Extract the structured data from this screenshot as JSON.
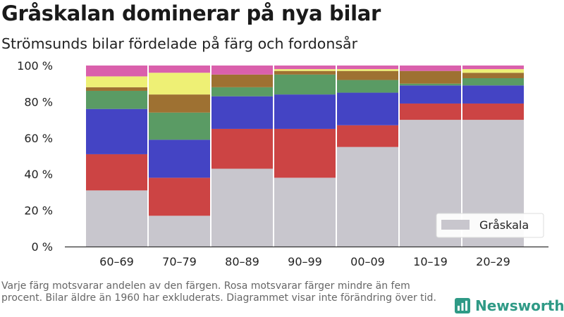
{
  "header": {
    "title": "Gråskalan dominerar på nya bilar",
    "subtitle": "Strömsunds bilar fördelade på färg och fordonsår"
  },
  "chart_data": {
    "type": "bar",
    "stacked": true,
    "categories": [
      "60–69",
      "70–79",
      "80–89",
      "90–99",
      "00–09",
      "10–19",
      "20–29"
    ],
    "y_ticks": [
      "0 %",
      "20 %",
      "40 %",
      "60 %",
      "80 %",
      "100 %"
    ],
    "ylim": [
      0,
      100
    ],
    "series": [
      {
        "key": "gray",
        "name": "Gråskala",
        "color": "#c8c6cd",
        "values": [
          31,
          17,
          43,
          38,
          55,
          70,
          70
        ]
      },
      {
        "key": "red",
        "name": "",
        "color": "#cc4444",
        "values": [
          20,
          21,
          22,
          27,
          12,
          9,
          9
        ]
      },
      {
        "key": "blue",
        "name": "",
        "color": "#4444c4",
        "values": [
          25,
          21,
          18,
          19,
          18,
          10,
          10
        ]
      },
      {
        "key": "green",
        "name": "",
        "color": "#5a9b64",
        "values": [
          10,
          15,
          5,
          11,
          7,
          1,
          4
        ]
      },
      {
        "key": "brown",
        "name": "",
        "color": "#9e7132",
        "values": [
          2,
          10,
          7,
          2,
          5,
          7,
          3
        ]
      },
      {
        "key": "yellow",
        "name": "",
        "color": "#eef075",
        "values": [
          6,
          12,
          0,
          1,
          1,
          0,
          2
        ]
      },
      {
        "key": "pink",
        "name": "",
        "color": "#da60ac",
        "values": [
          6,
          4,
          5,
          2,
          2,
          3,
          2
        ]
      }
    ],
    "legend": {
      "position": "bottom-right",
      "shown": [
        "Gråskala"
      ]
    },
    "grid": false
  },
  "footer": {
    "note": "Varje färg motsvarar andelen av den färgen. Rosa motsvarar färger mindre än fem procent. Bilar äldre än 1960 har exkluderats. Diagrammet visar inte förändring över tid.",
    "brand": "Newsworthy",
    "logo_icon": "bar-chart-logo-icon"
  }
}
